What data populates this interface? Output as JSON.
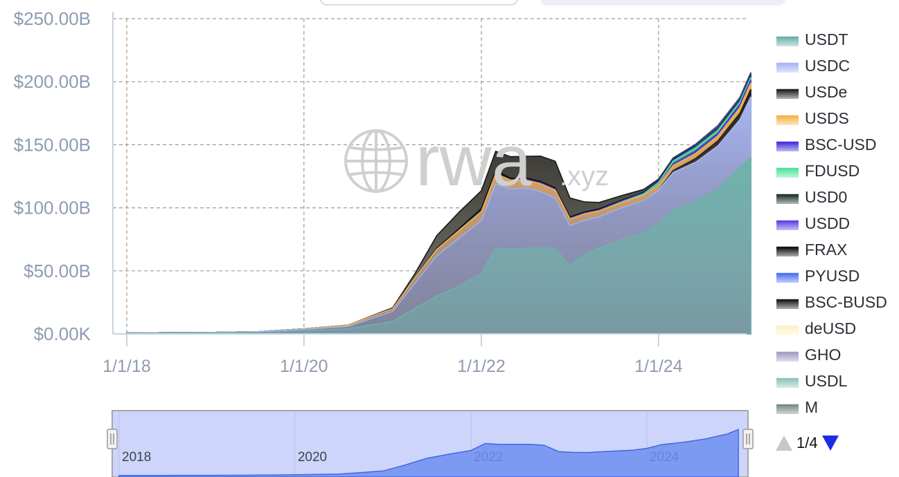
{
  "chart_data": {
    "type": "area",
    "stacked": true,
    "title": "",
    "xlabel": "",
    "ylabel": "",
    "x_ticks": [
      "1/1/18",
      "1/1/20",
      "1/1/22",
      "1/1/24"
    ],
    "y_ticks": [
      "$0.00K",
      "$50.00B",
      "$100.00B",
      "$150.00B",
      "$200.00B",
      "$250.00B"
    ],
    "xlim": [
      "2018-01-01",
      "2025-02-01"
    ],
    "ylim": [
      0,
      250
    ],
    "y_unit": "B USD",
    "grid": true,
    "legend_position": "right",
    "x": [
      "2018-01-01",
      "2018-07-01",
      "2019-01-01",
      "2019-07-01",
      "2020-01-01",
      "2020-07-01",
      "2021-01-01",
      "2021-04-01",
      "2021-07-01",
      "2021-10-01",
      "2022-01-01",
      "2022-03-01",
      "2022-05-01",
      "2022-07-01",
      "2022-09-01",
      "2022-11-01",
      "2023-01-01",
      "2023-03-01",
      "2023-05-01",
      "2023-08-01",
      "2023-11-01",
      "2024-01-01",
      "2024-03-01",
      "2024-06-01",
      "2024-09-01",
      "2024-12-01",
      "2025-01-15"
    ],
    "series": [
      {
        "name": "USDT",
        "color": "#6fb1a9",
        "values": [
          0.6,
          0.7,
          0.8,
          1.2,
          2.5,
          4.0,
          10,
          20,
          30,
          38,
          48,
          68,
          67,
          68,
          68,
          68,
          54,
          63,
          68,
          75,
          80,
          88,
          98,
          105,
          115,
          132,
          140
        ]
      },
      {
        "name": "USDC",
        "color": "#a9b6f2",
        "values": [
          0.2,
          0.3,
          0.4,
          0.6,
          1.2,
          2.0,
          8,
          20,
          32,
          38,
          42,
          51,
          48,
          48,
          45,
          40,
          32,
          27,
          25,
          25,
          26,
          26,
          30,
          31,
          34,
          38,
          48
        ]
      },
      {
        "name": "USDe",
        "color": "#222222",
        "values": [
          0,
          0,
          0,
          0,
          0,
          0,
          0,
          0,
          0,
          0,
          0,
          0,
          0,
          0,
          0,
          0,
          0,
          0,
          0,
          0,
          0,
          0,
          1.5,
          3,
          4,
          5,
          6
        ]
      },
      {
        "name": "USDS",
        "color": "#f4b44a",
        "values": [
          0,
          0,
          0,
          0,
          0.3,
          1.0,
          2,
          4,
          5,
          6,
          7,
          8,
          7,
          6,
          6,
          6,
          5,
          5,
          4.5,
          4,
          4,
          4,
          4,
          4,
          4,
          4.5,
          5
        ]
      },
      {
        "name": "BSC-USD",
        "color": "#4433dd",
        "values": [
          0,
          0,
          0,
          0,
          0,
          0,
          0,
          0,
          0,
          0,
          0,
          0,
          0,
          0,
          0,
          0,
          0,
          0,
          0,
          0,
          0,
          0,
          1.5,
          2,
          2,
          2.5,
          2.5
        ]
      },
      {
        "name": "FDUSD",
        "color": "#4ee39a",
        "values": [
          0,
          0,
          0,
          0,
          0,
          0,
          0,
          0,
          0,
          0,
          0,
          0,
          0,
          0,
          0,
          0,
          0,
          0,
          0,
          0.5,
          1,
          2,
          2,
          2.5,
          2.5,
          2,
          2
        ]
      },
      {
        "name": "USD0",
        "color": "#23332e",
        "values": [
          0,
          0,
          0,
          0,
          0,
          0,
          0,
          0,
          0,
          0,
          0,
          0,
          0,
          0,
          0,
          0,
          0,
          0,
          0,
          0,
          0,
          0,
          0,
          0.5,
          1,
          1.2,
          1.4
        ]
      },
      {
        "name": "USDD",
        "color": "#5a46e8",
        "values": [
          0,
          0,
          0,
          0,
          0,
          0,
          0,
          0,
          0,
          0,
          0,
          0,
          0,
          0.5,
          0.7,
          0.7,
          0.7,
          0.7,
          0.7,
          0.7,
          0.7,
          0.7,
          0.7,
          0.7,
          0.7,
          0.7,
          0.7
        ]
      },
      {
        "name": "FRAX",
        "color": "#111111",
        "values": [
          0,
          0,
          0,
          0,
          0,
          0,
          0,
          0.3,
          0.8,
          1.5,
          2.5,
          2.8,
          1.5,
          1.3,
          1.3,
          1.2,
          1.1,
          1.0,
          1.0,
          0.8,
          0.7,
          0.7,
          0.7,
          0.6,
          0.6,
          0.6,
          0.6
        ]
      },
      {
        "name": "PYUSD",
        "color": "#4f71f0",
        "values": [
          0,
          0,
          0,
          0,
          0,
          0,
          0,
          0,
          0,
          0,
          0,
          0,
          0,
          0,
          0,
          0,
          0,
          0,
          0,
          0.1,
          0.2,
          0.3,
          0.3,
          0.4,
          0.8,
          0.6,
          0.6
        ]
      },
      {
        "name": "BSC-BUSD",
        "color": "#1a1a1a",
        "values": [
          0,
          0,
          0,
          0,
          0,
          0,
          0.8,
          3,
          10,
          13,
          14,
          15,
          17,
          17,
          20,
          21,
          15,
          8,
          5,
          3.5,
          2,
          1,
          0.7,
          0.5,
          0.4,
          0.3,
          0.3
        ]
      },
      {
        "name": "deUSD",
        "color": "#fbf3c4",
        "values": [
          0,
          0,
          0,
          0,
          0,
          0,
          0,
          0,
          0,
          0,
          0,
          0,
          0,
          0,
          0,
          0,
          0,
          0,
          0,
          0,
          0,
          0,
          0,
          0,
          0.3,
          0.3,
          0.3
        ]
      },
      {
        "name": "GHO",
        "color": "#a79cc4",
        "values": [
          0,
          0,
          0,
          0,
          0,
          0,
          0,
          0,
          0,
          0,
          0,
          0,
          0,
          0,
          0,
          0,
          0,
          0,
          0,
          0.1,
          0.1,
          0.1,
          0.2,
          0.2,
          0.2,
          0.2,
          0.2
        ]
      },
      {
        "name": "USDL",
        "color": "#8fc4bd",
        "values": [
          0,
          0,
          0,
          0,
          0,
          0,
          0,
          0,
          0,
          0,
          0,
          0,
          0,
          0,
          0,
          0,
          0,
          0,
          0,
          0,
          0,
          0,
          0,
          0,
          0,
          0.05,
          0.05
        ]
      },
      {
        "name": "M",
        "color": "#7a8c84",
        "values": [
          0,
          0,
          0,
          0,
          0,
          0,
          0,
          0,
          0,
          0,
          0,
          0,
          0,
          0,
          0,
          0,
          0,
          0,
          0,
          0,
          0,
          0,
          0,
          0,
          0,
          0.05,
          0.05
        ]
      }
    ],
    "navigator_ticks": [
      "2018",
      "2020",
      "2022",
      "2024"
    ]
  },
  "watermark": {
    "main": "rwa",
    "suffix": ".xyz",
    "icon": "globe-icon"
  },
  "pager": {
    "label": "1/4",
    "prev_icon": "triangle-up-icon",
    "next_icon": "triangle-down-icon"
  }
}
